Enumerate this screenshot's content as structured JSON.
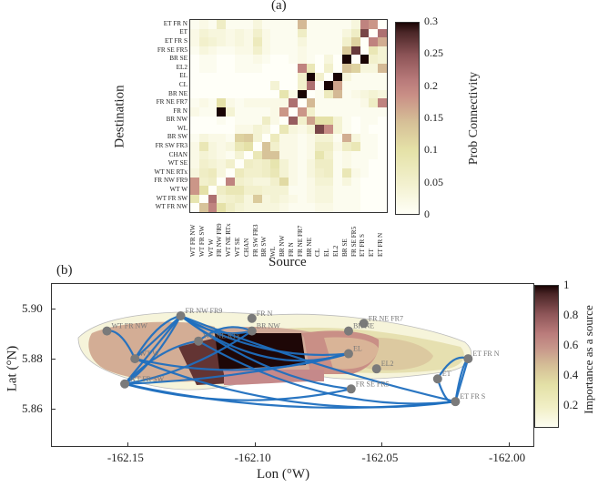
{
  "panel_a": {
    "label": "(a)",
    "xlabel": "Source",
    "ylabel": "Destination",
    "colorbar": {
      "label": "Prob Connectivity",
      "ticks": [
        "0.3",
        "0.25",
        "0.2",
        "0.15",
        "0.1",
        "0.05",
        "0"
      ],
      "range": [
        0,
        0.3
      ]
    }
  },
  "panel_b": {
    "label": "(b)",
    "xlabel": "Lon (°W)",
    "ylabel": "Lat (°N)",
    "xticks": [
      "-162.15",
      "-162.10",
      "-162.05",
      "-162.00"
    ],
    "yticks": [
      "5.90",
      "5.88",
      "5.86"
    ],
    "colorbar": {
      "label": "Importance as a source",
      "ticks": [
        "1",
        "0.8",
        "0.6",
        "0.4",
        "0.2"
      ],
      "range": [
        0.05,
        1
      ]
    },
    "node_labels": [
      "WT FR NW",
      "FR NW FR9",
      "FR N",
      "BR NW",
      "BR NE",
      "FR NE FR7",
      "WT NE RTx",
      "WT W",
      "WT FR SW",
      "EL",
      "EL2",
      "BR SE",
      "FR SE FR5",
      "FR SW FR3",
      "ET FR N",
      "ET",
      "ET FR S"
    ]
  },
  "chart_data": [
    {
      "type": "heatmap",
      "title": "(a)",
      "xlabel": "Source",
      "ylabel": "Destination",
      "colorbar_label": "Prob Connectivity",
      "zlim": [
        0,
        0.3
      ],
      "x": [
        "WT FR NW",
        "WT FR SW",
        "WT W",
        "FR NW FR9",
        "WT NE RTx",
        "WT SE",
        "CHAN",
        "FR SW FR3",
        "BR SW",
        "WL",
        "BR NW",
        "FR N",
        "FR NE FR7",
        "BR NE",
        "CL",
        "EL",
        "EL2",
        "BR SE",
        "FR SE FR5",
        "ET FR S",
        "ET",
        "ET FR N"
      ],
      "y": [
        "ET FR N",
        "ET",
        "ET FR S",
        "FR SE FR5",
        "BR SE",
        "EL2",
        "EL",
        "CL",
        "BR NE",
        "FR NE FR7",
        "FR N",
        "BR NW",
        "WL",
        "BR SW",
        "FR SW FR3",
        "CHAN",
        "WT SE",
        "WT NE RTx",
        "FR NW FR9",
        "WT W",
        "WT FR SW",
        "WT FR NW"
      ],
      "values": [
        [
          0.01,
          0.02,
          0.01,
          0.06,
          0.01,
          0.01,
          0.01,
          0.03,
          0.01,
          0.01,
          0.01,
          0.01,
          0.15,
          0.01,
          0.01,
          0.01,
          0.01,
          0.01,
          0.03,
          0.2,
          0.18,
          0.0
        ],
        [
          0.02,
          0.04,
          0.03,
          0.03,
          0.02,
          0.03,
          0.02,
          0.05,
          0.02,
          0.01,
          0.01,
          0.01,
          0.06,
          0.01,
          0.01,
          0.01,
          0.01,
          0.03,
          0.06,
          0.26,
          0.0,
          0.22
        ],
        [
          0.02,
          0.05,
          0.04,
          0.03,
          0.02,
          0.03,
          0.02,
          0.07,
          0.02,
          0.01,
          0.01,
          0.01,
          0.03,
          0.01,
          0.01,
          0.01,
          0.01,
          0.05,
          0.12,
          0.0,
          0.2,
          0.16
        ],
        [
          0.01,
          0.03,
          0.02,
          0.01,
          0.01,
          0.02,
          0.02,
          0.05,
          0.02,
          0.01,
          0.01,
          0.01,
          0.02,
          0.01,
          0.01,
          0.01,
          0.01,
          0.13,
          0.27,
          0.0,
          0.08,
          0.04
        ],
        [
          0.0,
          0.01,
          0.01,
          0.0,
          0.0,
          0.01,
          0.01,
          0.02,
          0.01,
          0.0,
          0.0,
          0.01,
          0.02,
          0.01,
          0.0,
          0.03,
          0.0,
          0.3,
          0.0,
          0.3,
          0.05,
          0.04
        ],
        [
          0.0,
          0.01,
          0.01,
          0.0,
          0.0,
          0.01,
          0.01,
          0.01,
          0.0,
          0.0,
          0.0,
          0.0,
          0.2,
          0.08,
          0.0,
          0.05,
          0.0,
          0.14,
          0.12,
          0.03,
          0.03,
          0.15
        ],
        [
          0.0,
          0.0,
          0.0,
          0.0,
          0.0,
          0.0,
          0.0,
          0.0,
          0.0,
          0.0,
          0.0,
          0.0,
          0.05,
          0.3,
          0.05,
          0.0,
          0.3,
          0.03,
          0.01,
          0.01,
          0.01,
          0.01
        ],
        [
          0.0,
          0.0,
          0.0,
          0.0,
          0.0,
          0.0,
          0.0,
          0.0,
          0.0,
          0.04,
          0.0,
          0.0,
          0.05,
          0.22,
          0.0,
          0.3,
          0.17,
          0.01,
          0.01,
          0.01,
          0.01,
          0.01
        ],
        [
          0.0,
          0.0,
          0.0,
          0.0,
          0.0,
          0.0,
          0.0,
          0.0,
          0.0,
          0.0,
          0.09,
          0.02,
          0.3,
          0.0,
          0.01,
          0.07,
          0.15,
          0.01,
          0.02,
          0.03,
          0.04,
          0.03
        ],
        [
          0.01,
          0.02,
          0.01,
          0.1,
          0.02,
          0.01,
          0.02,
          0.02,
          0.02,
          0.02,
          0.02,
          0.22,
          0.0,
          0.15,
          0.01,
          0.01,
          0.01,
          0.01,
          0.01,
          0.02,
          0.06,
          0.2
        ],
        [
          0.02,
          0.01,
          0.01,
          0.3,
          0.04,
          0.01,
          0.01,
          0.01,
          0.01,
          0.02,
          0.18,
          0.0,
          0.18,
          0.05,
          0.01,
          0.01,
          0.01,
          0.01,
          0.01,
          0.01,
          0.01,
          0.01
        ],
        [
          0.0,
          0.0,
          0.0,
          0.01,
          0.0,
          0.01,
          0.01,
          0.01,
          0.06,
          0.02,
          0.0,
          0.24,
          0.05,
          0.17,
          0.1,
          0.1,
          0.04,
          0.01,
          0.0,
          0.01,
          0.01,
          0.0
        ],
        [
          0.0,
          0.0,
          0.0,
          0.0,
          0.0,
          0.02,
          0.02,
          0.04,
          0.03,
          0.0,
          0.08,
          0.03,
          0.02,
          0.04,
          0.26,
          0.19,
          0.04,
          0.01,
          0.0,
          0.01,
          0.0,
          0.0
        ],
        [
          0.01,
          0.03,
          0.02,
          0.02,
          0.01,
          0.12,
          0.13,
          0.04,
          0.0,
          0.07,
          0.02,
          0.02,
          0.01,
          0.02,
          0.04,
          0.04,
          0.01,
          0.16,
          0.03,
          0.01,
          0.01,
          0.0
        ],
        [
          0.02,
          0.08,
          0.03,
          0.02,
          0.03,
          0.08,
          0.1,
          0.0,
          0.14,
          0.05,
          0.02,
          0.02,
          0.01,
          0.02,
          0.06,
          0.06,
          0.02,
          0.06,
          0.08,
          0.01,
          0.01,
          0.0
        ],
        [
          0.02,
          0.04,
          0.03,
          0.02,
          0.01,
          0.04,
          0.0,
          0.08,
          0.14,
          0.14,
          0.02,
          0.02,
          0.01,
          0.02,
          0.09,
          0.05,
          0.01,
          0.02,
          0.01,
          0.01,
          0.01,
          0.0
        ],
        [
          0.02,
          0.05,
          0.04,
          0.03,
          0.05,
          0.0,
          0.06,
          0.05,
          0.06,
          0.09,
          0.04,
          0.02,
          0.01,
          0.03,
          0.06,
          0.06,
          0.01,
          0.02,
          0.01,
          0.01,
          0.0,
          0.0
        ],
        [
          0.03,
          0.06,
          0.07,
          0.03,
          0.0,
          0.07,
          0.05,
          0.05,
          0.06,
          0.08,
          0.04,
          0.02,
          0.01,
          0.03,
          0.05,
          0.06,
          0.01,
          0.08,
          0.02,
          0.01,
          0.0,
          0.0
        ],
        [
          0.18,
          0.05,
          0.06,
          0.0,
          0.2,
          0.05,
          0.04,
          0.03,
          0.03,
          0.05,
          0.11,
          0.02,
          0.01,
          0.02,
          0.04,
          0.04,
          0.01,
          0.03,
          0.01,
          0.0,
          0.0,
          0.0
        ],
        [
          0.18,
          0.1,
          0.0,
          0.06,
          0.08,
          0.08,
          0.05,
          0.05,
          0.04,
          0.04,
          0.04,
          0.01,
          0.01,
          0.02,
          0.03,
          0.03,
          0.01,
          0.01,
          0.01,
          0.0,
          0.0,
          0.0
        ],
        [
          0.09,
          0.0,
          0.22,
          0.04,
          0.05,
          0.06,
          0.03,
          0.13,
          0.03,
          0.04,
          0.03,
          0.02,
          0.01,
          0.02,
          0.03,
          0.03,
          0.01,
          0.01,
          0.01,
          0.0,
          0.0,
          0.0
        ],
        [
          0.0,
          0.14,
          0.2,
          0.1,
          0.06,
          0.04,
          0.03,
          0.03,
          0.03,
          0.03,
          0.02,
          0.01,
          0.01,
          0.01,
          0.02,
          0.02,
          0.01,
          0.01,
          0.01,
          0.0,
          0.0,
          0.0
        ]
      ]
    },
    {
      "type": "map",
      "title": "(b)",
      "xlabel": "Lon (°W)",
      "ylabel": "Lat (°N)",
      "xlim": [
        -162.18,
        -161.99
      ],
      "ylim": [
        5.845,
        5.91
      ],
      "xticks": [
        -162.15,
        -162.1,
        -162.05,
        -162.0
      ],
      "yticks": [
        5.86,
        5.88,
        5.9
      ],
      "colorbar_label": "Importance as a source",
      "zlim": [
        0.05,
        1
      ],
      "nodes": [
        {
          "name": "WT FR NW",
          "lon": -162.158,
          "lat": 5.891
        },
        {
          "name": "FR NW FR9",
          "lon": -162.129,
          "lat": 5.897
        },
        {
          "name": "FR N",
          "lon": -162.101,
          "lat": 5.896
        },
        {
          "name": "BR NW",
          "lon": -162.101,
          "lat": 5.891
        },
        {
          "name": "WT NE RTx",
          "lon": -162.122,
          "lat": 5.887
        },
        {
          "name": "WT W",
          "lon": -162.147,
          "lat": 5.88
        },
        {
          "name": "WT FR SW",
          "lon": -162.151,
          "lat": 5.87
        },
        {
          "name": "BR NE",
          "lon": -162.063,
          "lat": 5.891
        },
        {
          "name": "FR NE FR7",
          "lon": -162.057,
          "lat": 5.894
        },
        {
          "name": "EL",
          "lon": -162.063,
          "lat": 5.882
        },
        {
          "name": "EL2",
          "lon": -162.052,
          "lat": 5.876
        },
        {
          "name": "FR SE FR5",
          "lon": -162.062,
          "lat": 5.868
        },
        {
          "name": "ET FR N",
          "lon": -162.016,
          "lat": 5.88
        },
        {
          "name": "ET",
          "lon": -162.028,
          "lat": 5.872
        },
        {
          "name": "ET FR S",
          "lon": -162.021,
          "lat": 5.863
        }
      ],
      "edge_color": "#1f6fbf"
    }
  ]
}
